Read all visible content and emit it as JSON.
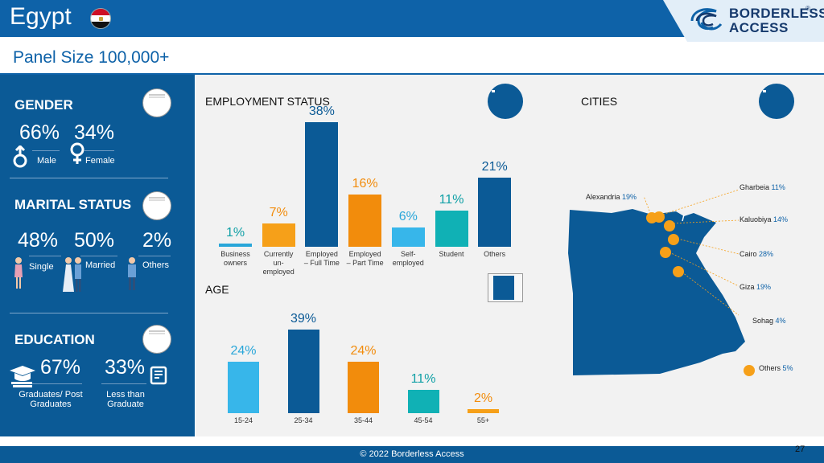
{
  "header": {
    "country": "Egypt",
    "logo_line1": "BORDERLESS",
    "logo_line2": "ACCESS",
    "logo_reg": "®"
  },
  "subtitle": "Panel Size 100,000+",
  "gender": {
    "title": "GENDER",
    "male": {
      "value": "66%",
      "label": "Male"
    },
    "female": {
      "value": "34%",
      "label": "Female"
    }
  },
  "marital": {
    "title": "MARITAL STATUS",
    "items": [
      {
        "value": "48%",
        "label": "Single"
      },
      {
        "value": "50%",
        "label": "Married"
      },
      {
        "value": "2%",
        "label": "Others"
      }
    ]
  },
  "education": {
    "title": "EDUCATION",
    "items": [
      {
        "value": "67%",
        "label": "Graduates/ Post Graduates"
      },
      {
        "value": "33%",
        "label": "Less than Graduate"
      }
    ]
  },
  "chart_data": [
    {
      "type": "bar",
      "title": "EMPLOYMENT STATUS",
      "categories": [
        "Business owners",
        "Currently un-employed",
        "Employed – Full Time",
        "Employed – Part Time",
        "Self-employed",
        "Student",
        "Others"
      ],
      "values": [
        1,
        7,
        38,
        16,
        6,
        11,
        21
      ],
      "labels": [
        "1%",
        "7%",
        "38%",
        "16%",
        "6%",
        "11%",
        "21%"
      ],
      "colors": [
        "#29a6d9",
        "#f6a019",
        "#0b5a96",
        "#f28c0c",
        "#37b6ea",
        "#10b1b5",
        "#0b5a96"
      ],
      "label_colors": [
        "#10a0a6",
        "#f28c0c",
        "#0b5a96",
        "#f28c0c",
        "#29a6d9",
        "#10a0a6",
        "#0b5a96"
      ],
      "ylim": [
        0,
        38
      ]
    },
    {
      "type": "bar",
      "title": "AGE",
      "categories": [
        "15-24",
        "25-34",
        "35-44",
        "45-54",
        "55+"
      ],
      "values": [
        24,
        39,
        24,
        11,
        2
      ],
      "labels": [
        "24%",
        "39%",
        "24%",
        "11%",
        "2%"
      ],
      "colors": [
        "#37b6ea",
        "#0b5a96",
        "#f28c0c",
        "#10b1b5",
        "#f6a019"
      ],
      "label_colors": [
        "#29a6d9",
        "#0b5a96",
        "#f28c0c",
        "#10a0a6",
        "#f28c0c"
      ],
      "ylim": [
        0,
        39
      ]
    }
  ],
  "cities": {
    "title": "CITIES",
    "items": [
      {
        "name": "Alexandria",
        "pct": "19%"
      },
      {
        "name": "Gharbeia",
        "pct": "11%"
      },
      {
        "name": "Kaluobiya",
        "pct": "14%"
      },
      {
        "name": "Cairo",
        "pct": "28%"
      },
      {
        "name": "Giza",
        "pct": "19%"
      },
      {
        "name": "Sohag",
        "pct": "4%"
      },
      {
        "name": "Others",
        "pct": "5%"
      }
    ]
  },
  "footer": {
    "copyright": "© 2022 Borderless Access",
    "page": "27"
  }
}
